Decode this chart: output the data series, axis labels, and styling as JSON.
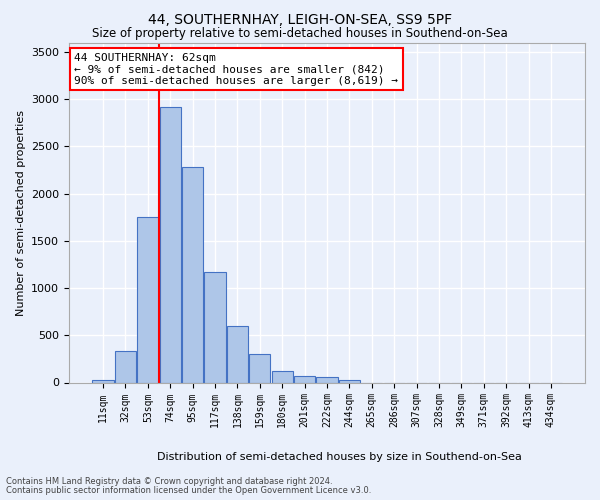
{
  "title": "44, SOUTHERNHAY, LEIGH-ON-SEA, SS9 5PF",
  "subtitle": "Size of property relative to semi-detached houses in Southend-on-Sea",
  "xlabel": "Distribution of semi-detached houses by size in Southend-on-Sea",
  "ylabel": "Number of semi-detached properties",
  "bar_values": [
    30,
    330,
    1750,
    2920,
    2280,
    1165,
    595,
    300,
    125,
    70,
    55,
    30,
    0,
    0,
    0,
    0,
    0,
    0,
    0,
    0,
    0
  ],
  "bar_labels": [
    "11sqm",
    "32sqm",
    "53sqm",
    "74sqm",
    "95sqm",
    "117sqm",
    "138sqm",
    "159sqm",
    "180sqm",
    "201sqm",
    "222sqm",
    "244sqm",
    "265sqm",
    "286sqm",
    "307sqm",
    "328sqm",
    "349sqm",
    "371sqm",
    "392sqm",
    "413sqm",
    "434sqm"
  ],
  "bar_color": "#aec6e8",
  "bar_edge_color": "#4472c4",
  "vline_x": 2.5,
  "vline_color": "red",
  "annotation_text": "44 SOUTHERNHAY: 62sqm\n← 9% of semi-detached houses are smaller (842)\n90% of semi-detached houses are larger (8,619) →",
  "annotation_box_color": "white",
  "annotation_box_edge_color": "red",
  "ylim": [
    0,
    3600
  ],
  "yticks": [
    0,
    500,
    1000,
    1500,
    2000,
    2500,
    3000,
    3500
  ],
  "background_color": "#eaf0fb",
  "grid_color": "white",
  "footer_line1": "Contains HM Land Registry data © Crown copyright and database right 2024.",
  "footer_line2": "Contains public sector information licensed under the Open Government Licence v3.0."
}
